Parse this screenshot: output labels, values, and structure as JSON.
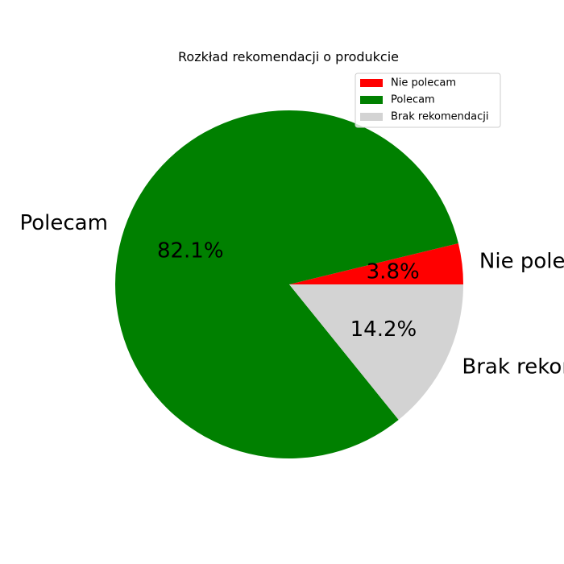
{
  "chart_data": {
    "type": "pie",
    "title": "Rozkład rekomendacji o produkcie",
    "categories": [
      "Nie polecam",
      "Polecam",
      "Brak rekomendacji"
    ],
    "values": [
      3.8,
      82.1,
      14.2
    ],
    "percent_labels": [
      "3.8%",
      "82.1%",
      "14.2%"
    ],
    "colors": [
      "#ff0000",
      "#008000",
      "#d3d3d3"
    ],
    "legend": {
      "placement": "upper-right",
      "entries": [
        "Nie polecam",
        "Polecam",
        "Brak rekomendacji"
      ]
    }
  }
}
